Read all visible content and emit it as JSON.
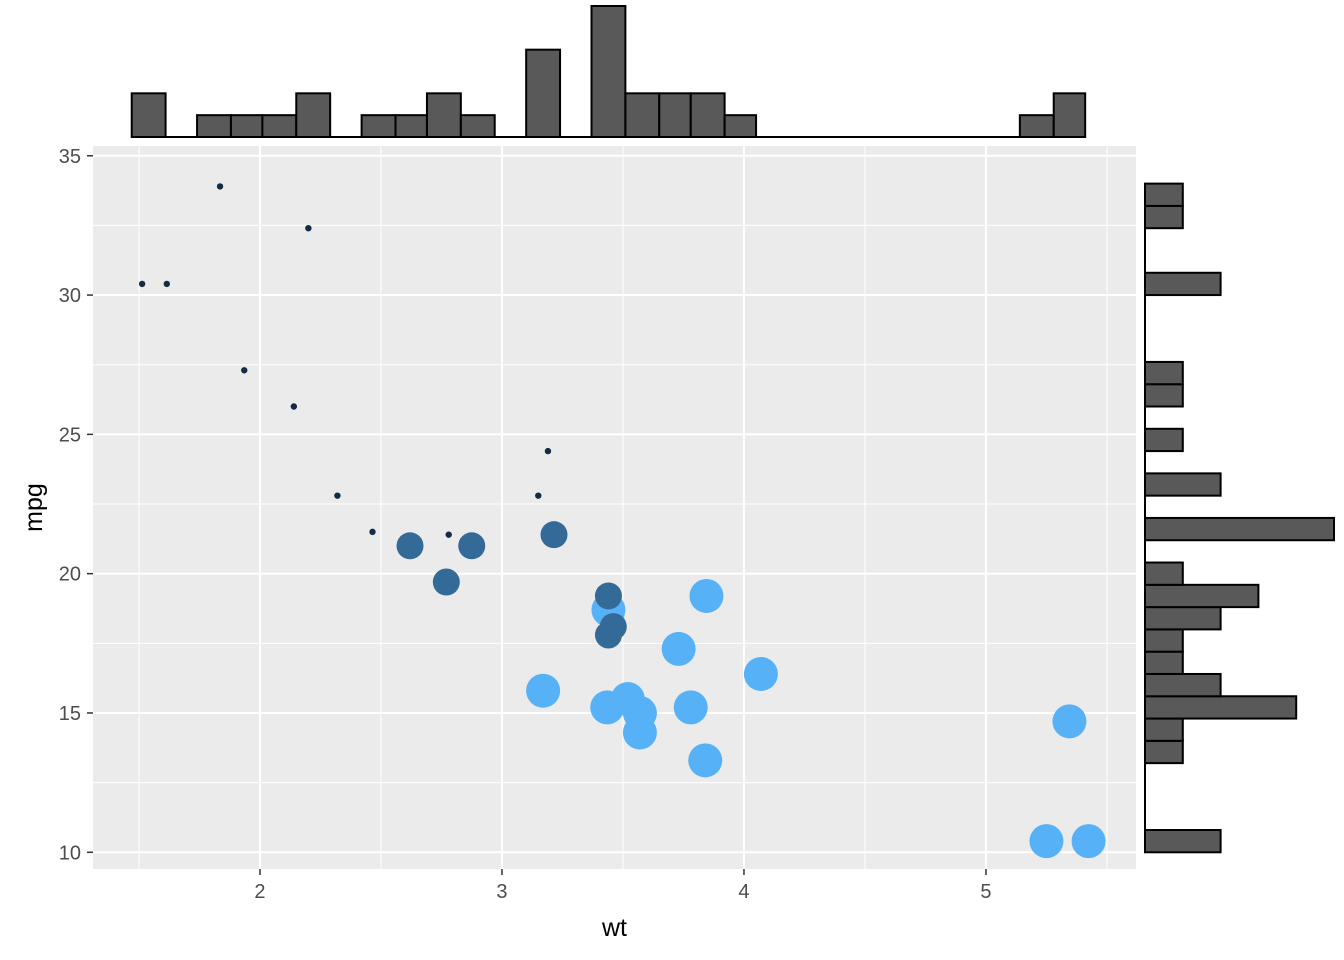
{
  "chart_data": {
    "type": "scatter",
    "title": "",
    "xlabel": "wt",
    "ylabel": "mpg",
    "xlim": [
      1.31,
      5.62
    ],
    "ylim": [
      9.4,
      35.35
    ],
    "x_ticks": [
      2,
      3,
      4,
      5
    ],
    "y_ticks": [
      10,
      15,
      20,
      25,
      30,
      35
    ],
    "x_tick_labels": [
      "2",
      "3",
      "4",
      "5"
    ],
    "y_tick_labels": [
      "10",
      "15",
      "20",
      "25",
      "30",
      "35"
    ],
    "grid": true,
    "legend": "none",
    "size_and_color_encoding": "cyl",
    "colors": {
      "small": "#132B43",
      "medium": "#336A98",
      "large": "#56B1F7",
      "panel": "#EBEBEB",
      "grid": "#FFFFFF",
      "histogram_fill": "#595959",
      "histogram_stroke": "#000000"
    },
    "points": [
      {
        "wt": 2.62,
        "mpg": 21.0,
        "cyl": 6
      },
      {
        "wt": 2.875,
        "mpg": 21.0,
        "cyl": 6
      },
      {
        "wt": 2.32,
        "mpg": 22.8,
        "cyl": 4
      },
      {
        "wt": 3.215,
        "mpg": 21.4,
        "cyl": 6
      },
      {
        "wt": 3.44,
        "mpg": 18.7,
        "cyl": 8
      },
      {
        "wt": 3.46,
        "mpg": 18.1,
        "cyl": 6
      },
      {
        "wt": 3.57,
        "mpg": 14.3,
        "cyl": 8
      },
      {
        "wt": 3.19,
        "mpg": 24.4,
        "cyl": 4
      },
      {
        "wt": 3.15,
        "mpg": 22.8,
        "cyl": 4
      },
      {
        "wt": 3.44,
        "mpg": 19.2,
        "cyl": 6
      },
      {
        "wt": 3.44,
        "mpg": 17.8,
        "cyl": 6
      },
      {
        "wt": 4.07,
        "mpg": 16.4,
        "cyl": 8
      },
      {
        "wt": 3.73,
        "mpg": 17.3,
        "cyl": 8
      },
      {
        "wt": 3.78,
        "mpg": 15.2,
        "cyl": 8
      },
      {
        "wt": 5.25,
        "mpg": 10.4,
        "cyl": 8
      },
      {
        "wt": 5.424,
        "mpg": 10.4,
        "cyl": 8
      },
      {
        "wt": 5.345,
        "mpg": 14.7,
        "cyl": 8
      },
      {
        "wt": 2.2,
        "mpg": 32.4,
        "cyl": 4
      },
      {
        "wt": 1.615,
        "mpg": 30.4,
        "cyl": 4
      },
      {
        "wt": 1.835,
        "mpg": 33.9,
        "cyl": 4
      },
      {
        "wt": 2.465,
        "mpg": 21.5,
        "cyl": 4
      },
      {
        "wt": 3.52,
        "mpg": 15.5,
        "cyl": 8
      },
      {
        "wt": 3.435,
        "mpg": 15.2,
        "cyl": 8
      },
      {
        "wt": 3.84,
        "mpg": 13.3,
        "cyl": 8
      },
      {
        "wt": 3.845,
        "mpg": 19.2,
        "cyl": 8
      },
      {
        "wt": 1.935,
        "mpg": 27.3,
        "cyl": 4
      },
      {
        "wt": 2.14,
        "mpg": 26.0,
        "cyl": 4
      },
      {
        "wt": 1.513,
        "mpg": 30.4,
        "cyl": 4
      },
      {
        "wt": 3.17,
        "mpg": 15.8,
        "cyl": 8
      },
      {
        "wt": 2.77,
        "mpg": 19.7,
        "cyl": 6
      },
      {
        "wt": 3.57,
        "mpg": 15.0,
        "cyl": 8
      },
      {
        "wt": 2.78,
        "mpg": 21.4,
        "cyl": 4
      }
    ],
    "marginal_x_histogram": {
      "variable": "wt",
      "bins": [
        {
          "x0": 1.47,
          "x1": 1.61,
          "count": 2
        },
        {
          "x0": 1.61,
          "x1": 1.74,
          "count": 0
        },
        {
          "x0": 1.74,
          "x1": 1.88,
          "count": 1
        },
        {
          "x0": 1.88,
          "x1": 2.01,
          "count": 1
        },
        {
          "x0": 2.01,
          "x1": 2.15,
          "count": 1
        },
        {
          "x0": 2.15,
          "x1": 2.29,
          "count": 2
        },
        {
          "x0": 2.29,
          "x1": 2.42,
          "count": 0
        },
        {
          "x0": 2.42,
          "x1": 2.56,
          "count": 1
        },
        {
          "x0": 2.56,
          "x1": 2.69,
          "count": 1
        },
        {
          "x0": 2.69,
          "x1": 2.83,
          "count": 2
        },
        {
          "x0": 2.83,
          "x1": 2.97,
          "count": 1
        },
        {
          "x0": 2.97,
          "x1": 3.1,
          "count": 0
        },
        {
          "x0": 3.1,
          "x1": 3.24,
          "count": 4
        },
        {
          "x0": 3.24,
          "x1": 3.37,
          "count": 0
        },
        {
          "x0": 3.37,
          "x1": 3.51,
          "count": 6
        },
        {
          "x0": 3.51,
          "x1": 3.65,
          "count": 2
        },
        {
          "x0": 3.65,
          "x1": 3.78,
          "count": 2
        },
        {
          "x0": 3.78,
          "x1": 3.92,
          "count": 2
        },
        {
          "x0": 3.92,
          "x1": 4.05,
          "count": 1
        },
        {
          "x0": 4.05,
          "x1": 4.19,
          "count": 0
        },
        {
          "x0": 4.19,
          "x1": 4.33,
          "count": 0
        },
        {
          "x0": 4.33,
          "x1": 4.46,
          "count": 0
        },
        {
          "x0": 4.46,
          "x1": 4.6,
          "count": 0
        },
        {
          "x0": 4.6,
          "x1": 4.73,
          "count": 0
        },
        {
          "x0": 4.73,
          "x1": 4.87,
          "count": 0
        },
        {
          "x0": 4.87,
          "x1": 5.01,
          "count": 0
        },
        {
          "x0": 5.01,
          "x1": 5.14,
          "count": 0
        },
        {
          "x0": 5.14,
          "x1": 5.28,
          "count": 1
        },
        {
          "x0": 5.28,
          "x1": 5.41,
          "count": 2
        }
      ]
    },
    "marginal_y_histogram": {
      "variable": "mpg",
      "bins": [
        {
          "y0": 10.0,
          "y1": 10.8,
          "count": 2
        },
        {
          "y0": 10.8,
          "y1": 11.6,
          "count": 0
        },
        {
          "y0": 11.6,
          "y1": 12.4,
          "count": 0
        },
        {
          "y0": 12.4,
          "y1": 13.2,
          "count": 0
        },
        {
          "y0": 13.2,
          "y1": 14.0,
          "count": 1
        },
        {
          "y0": 14.0,
          "y1": 14.8,
          "count": 1
        },
        {
          "y0": 14.8,
          "y1": 15.6,
          "count": 4
        },
        {
          "y0": 15.6,
          "y1": 16.4,
          "count": 2
        },
        {
          "y0": 16.4,
          "y1": 17.2,
          "count": 1
        },
        {
          "y0": 17.2,
          "y1": 18.0,
          "count": 1
        },
        {
          "y0": 18.0,
          "y1": 18.8,
          "count": 2
        },
        {
          "y0": 18.8,
          "y1": 19.6,
          "count": 3
        },
        {
          "y0": 19.6,
          "y1": 20.4,
          "count": 1
        },
        {
          "y0": 20.4,
          "y1": 21.2,
          "count": 0
        },
        {
          "y0": 21.2,
          "y1": 22.0,
          "count": 5
        },
        {
          "y0": 22.0,
          "y1": 22.8,
          "count": 0
        },
        {
          "y0": 22.8,
          "y1": 23.6,
          "count": 2
        },
        {
          "y0": 23.6,
          "y1": 24.4,
          "count": 0
        },
        {
          "y0": 24.4,
          "y1": 25.2,
          "count": 1
        },
        {
          "y0": 25.2,
          "y1": 26.0,
          "count": 0
        },
        {
          "y0": 26.0,
          "y1": 26.8,
          "count": 1
        },
        {
          "y0": 26.8,
          "y1": 27.6,
          "count": 1
        },
        {
          "y0": 27.6,
          "y1": 28.4,
          "count": 0
        },
        {
          "y0": 28.4,
          "y1": 29.2,
          "count": 0
        },
        {
          "y0": 29.2,
          "y1": 30.0,
          "count": 0
        },
        {
          "y0": 30.0,
          "y1": 30.8,
          "count": 2
        },
        {
          "y0": 30.8,
          "y1": 31.6,
          "count": 0
        },
        {
          "y0": 31.6,
          "y1": 32.4,
          "count": 0
        },
        {
          "y0": 32.4,
          "y1": 33.2,
          "count": 1
        },
        {
          "y0": 33.2,
          "y1": 34.0,
          "count": 1
        }
      ]
    }
  }
}
